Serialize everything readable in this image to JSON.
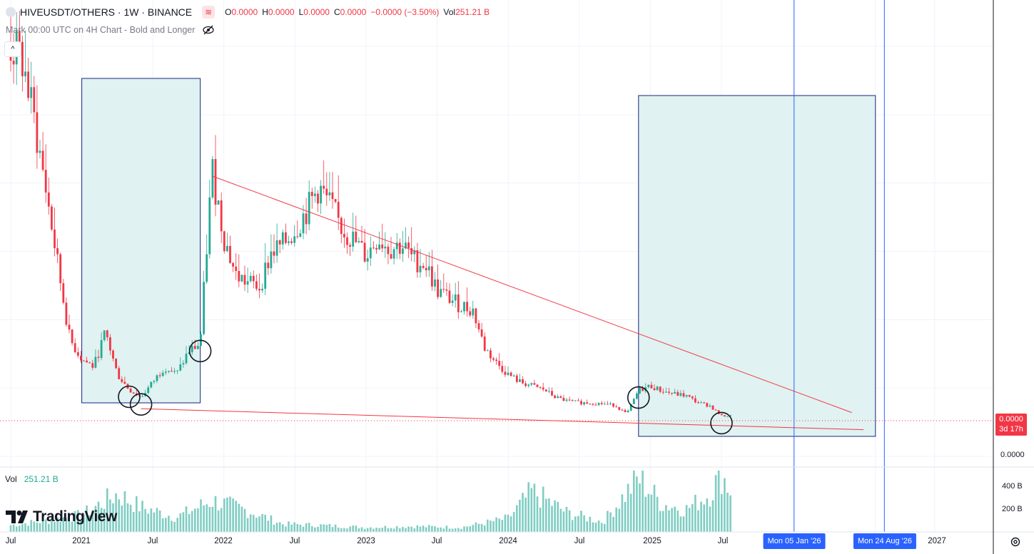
{
  "header": {
    "symbol_title": "HIVEUSDT/OTHERS · 1W · BINANCE",
    "ohlc": [
      {
        "k": "O",
        "v": "0.0000"
      },
      {
        "k": "H",
        "v": "0.0000"
      },
      {
        "k": "L",
        "v": "0.0000"
      },
      {
        "k": "C",
        "v": "0.0000"
      },
      {
        "k": "",
        "v": "−0.0000 (−3.50%)"
      },
      {
        "k": "Vol",
        "v": "251.21 B"
      }
    ],
    "indicator_label": "Mark 00:00 UTC on 4H Chart - Bold and Longer",
    "collapse_icon": "chevron-up-icon"
  },
  "volume_legend": {
    "label": "Vol",
    "value": "251.21 B"
  },
  "price_axis": {
    "badge_value": "0.0000",
    "badge_countdown": "3d 17h",
    "zero_label": "0.0000"
  },
  "volume_axis": {
    "ticks": [
      "400 B",
      "200 B"
    ]
  },
  "time_axis": {
    "labels": [
      "Jul",
      "2021",
      "Jul",
      "2022",
      "Jul",
      "2023",
      "Jul",
      "2024",
      "Jul",
      "2025",
      "Jul",
      "2027"
    ],
    "date_flags": [
      "Mon 05 Jan '26",
      "Mon 24 Aug '26"
    ]
  },
  "branding": {
    "logo_text": "TradingView",
    "logo_icon": "tradingview-logo-icon"
  },
  "colors": {
    "up": "#22ab94",
    "down": "#f23645",
    "zone_fill": "#e0f2f1",
    "zone_border": "#2962ff",
    "trendline": "#f23645",
    "volume": "#7fcdc3"
  },
  "chart_data": {
    "type": "candlestick",
    "title": "HIVEUSDT/OTHERS",
    "timeframe": "1W",
    "y_axis_label_precision": "0.0000",
    "x": [
      "2020-07",
      "2021-01",
      "2021-07",
      "2022-01",
      "2022-07",
      "2023-01",
      "2023-07",
      "2024-01",
      "2024-07",
      "2025-01",
      "2025-07",
      "2026-01",
      "2026-08",
      "2027-01"
    ],
    "series": [
      {
        "name": "HIVEUSDT/OTHERS",
        "close_profile": [
          [
            "2020-07",
            100
          ],
          [
            "2020-08",
            96
          ],
          [
            "2020-09",
            80
          ],
          [
            "2020-10",
            62
          ],
          [
            "2020-11",
            42
          ],
          [
            "2020-12",
            23
          ],
          [
            "2021-01",
            18
          ],
          [
            "2021-02",
            16
          ],
          [
            "2021-03",
            25
          ],
          [
            "2021-04",
            14
          ],
          [
            "2021-05",
            10
          ],
          [
            "2021-06",
            8
          ],
          [
            "2021-07",
            12
          ],
          [
            "2021-08",
            16
          ],
          [
            "2021-09",
            14
          ],
          [
            "2021-10",
            20
          ],
          [
            "2021-11",
            22
          ],
          [
            "2021-12",
            68
          ],
          [
            "2022-01",
            50
          ],
          [
            "2022-02",
            40
          ],
          [
            "2022-03",
            38
          ],
          [
            "2022-04",
            37
          ],
          [
            "2022-05",
            46
          ],
          [
            "2022-06",
            48
          ],
          [
            "2022-07",
            52
          ],
          [
            "2022-08",
            57
          ],
          [
            "2022-09",
            63
          ],
          [
            "2022-10",
            58
          ],
          [
            "2022-11",
            52
          ],
          [
            "2022-12",
            49
          ],
          [
            "2023-01",
            45
          ],
          [
            "2023-02",
            50
          ],
          [
            "2023-03",
            47
          ],
          [
            "2023-04",
            48
          ],
          [
            "2023-05",
            44
          ],
          [
            "2023-06",
            43
          ],
          [
            "2023-07",
            36
          ],
          [
            "2023-08",
            34
          ],
          [
            "2023-09",
            32
          ],
          [
            "2023-10",
            31
          ],
          [
            "2023-11",
            21
          ],
          [
            "2023-12",
            17
          ],
          [
            "2024-01",
            14
          ],
          [
            "2024-02",
            12
          ],
          [
            "2024-03",
            11
          ],
          [
            "2024-04",
            10
          ],
          [
            "2024-05",
            8
          ],
          [
            "2024-06",
            7
          ],
          [
            "2024-07",
            6.6
          ],
          [
            "2024-08",
            6.5
          ],
          [
            "2024-09",
            6.3
          ],
          [
            "2024-10",
            5.9
          ],
          [
            "2024-11",
            3.6
          ],
          [
            "2024-12",
            9.8
          ],
          [
            "2025-01",
            11
          ],
          [
            "2025-02",
            9.6
          ],
          [
            "2025-03",
            8.9
          ],
          [
            "2025-04",
            8.4
          ],
          [
            "2025-05",
            6.6
          ],
          [
            "2025-06",
            5.8
          ],
          [
            "2025-07",
            3.1
          ]
        ],
        "scale": "relative (price labels shown as 0.0000)"
      }
    ],
    "volume": {
      "name": "Vol",
      "unit": "B",
      "profile": [
        [
          "2020-07",
          60
        ],
        [
          "2020-10",
          100
        ],
        [
          "2021-01",
          150
        ],
        [
          "2021-04",
          340
        ],
        [
          "2021-06",
          220
        ],
        [
          "2021-09",
          130
        ],
        [
          "2021-12",
          280
        ],
        [
          "2022-03",
          190
        ],
        [
          "2022-06",
          70
        ],
        [
          "2022-09",
          60
        ],
        [
          "2023-01",
          40
        ],
        [
          "2023-05",
          50
        ],
        [
          "2023-09",
          40
        ],
        [
          "2024-01",
          120
        ],
        [
          "2024-03",
          360
        ],
        [
          "2024-06",
          170
        ],
        [
          "2024-09",
          90
        ],
        [
          "2024-12",
          480
        ],
        [
          "2025-02",
          250
        ],
        [
          "2025-04",
          200
        ],
        [
          "2025-06",
          340
        ],
        [
          "2025-07",
          520
        ],
        [
          "2025-08",
          320
        ]
      ],
      "ylim": [
        0,
        520
      ],
      "ticks": [
        200,
        400
      ]
    },
    "drawings": [
      {
        "type": "rectangle",
        "from": "2021-01",
        "to": "2021-11",
        "label": "accumulation-zone-1"
      },
      {
        "type": "rectangle",
        "from": "2024-12",
        "to": "2026-08",
        "label": "accumulation-zone-2"
      },
      {
        "type": "trendline",
        "from": "2021-12",
        "to": "2026-06",
        "role": "descending-resistance"
      },
      {
        "type": "trendline",
        "from": "2021-06",
        "to": "2026-07",
        "role": "descending-support"
      },
      {
        "type": "vertical-line",
        "at": "2026-01-05"
      },
      {
        "type": "vertical-line",
        "at": "2026-08-24"
      },
      {
        "type": "circle",
        "at": "2021-05"
      },
      {
        "type": "circle",
        "at": "2021-06"
      },
      {
        "type": "circle",
        "at": "2021-11"
      },
      {
        "type": "circle",
        "at": "2024-12"
      },
      {
        "type": "circle",
        "at": "2025-07"
      }
    ],
    "grid": true,
    "legend_position": "top-left"
  }
}
